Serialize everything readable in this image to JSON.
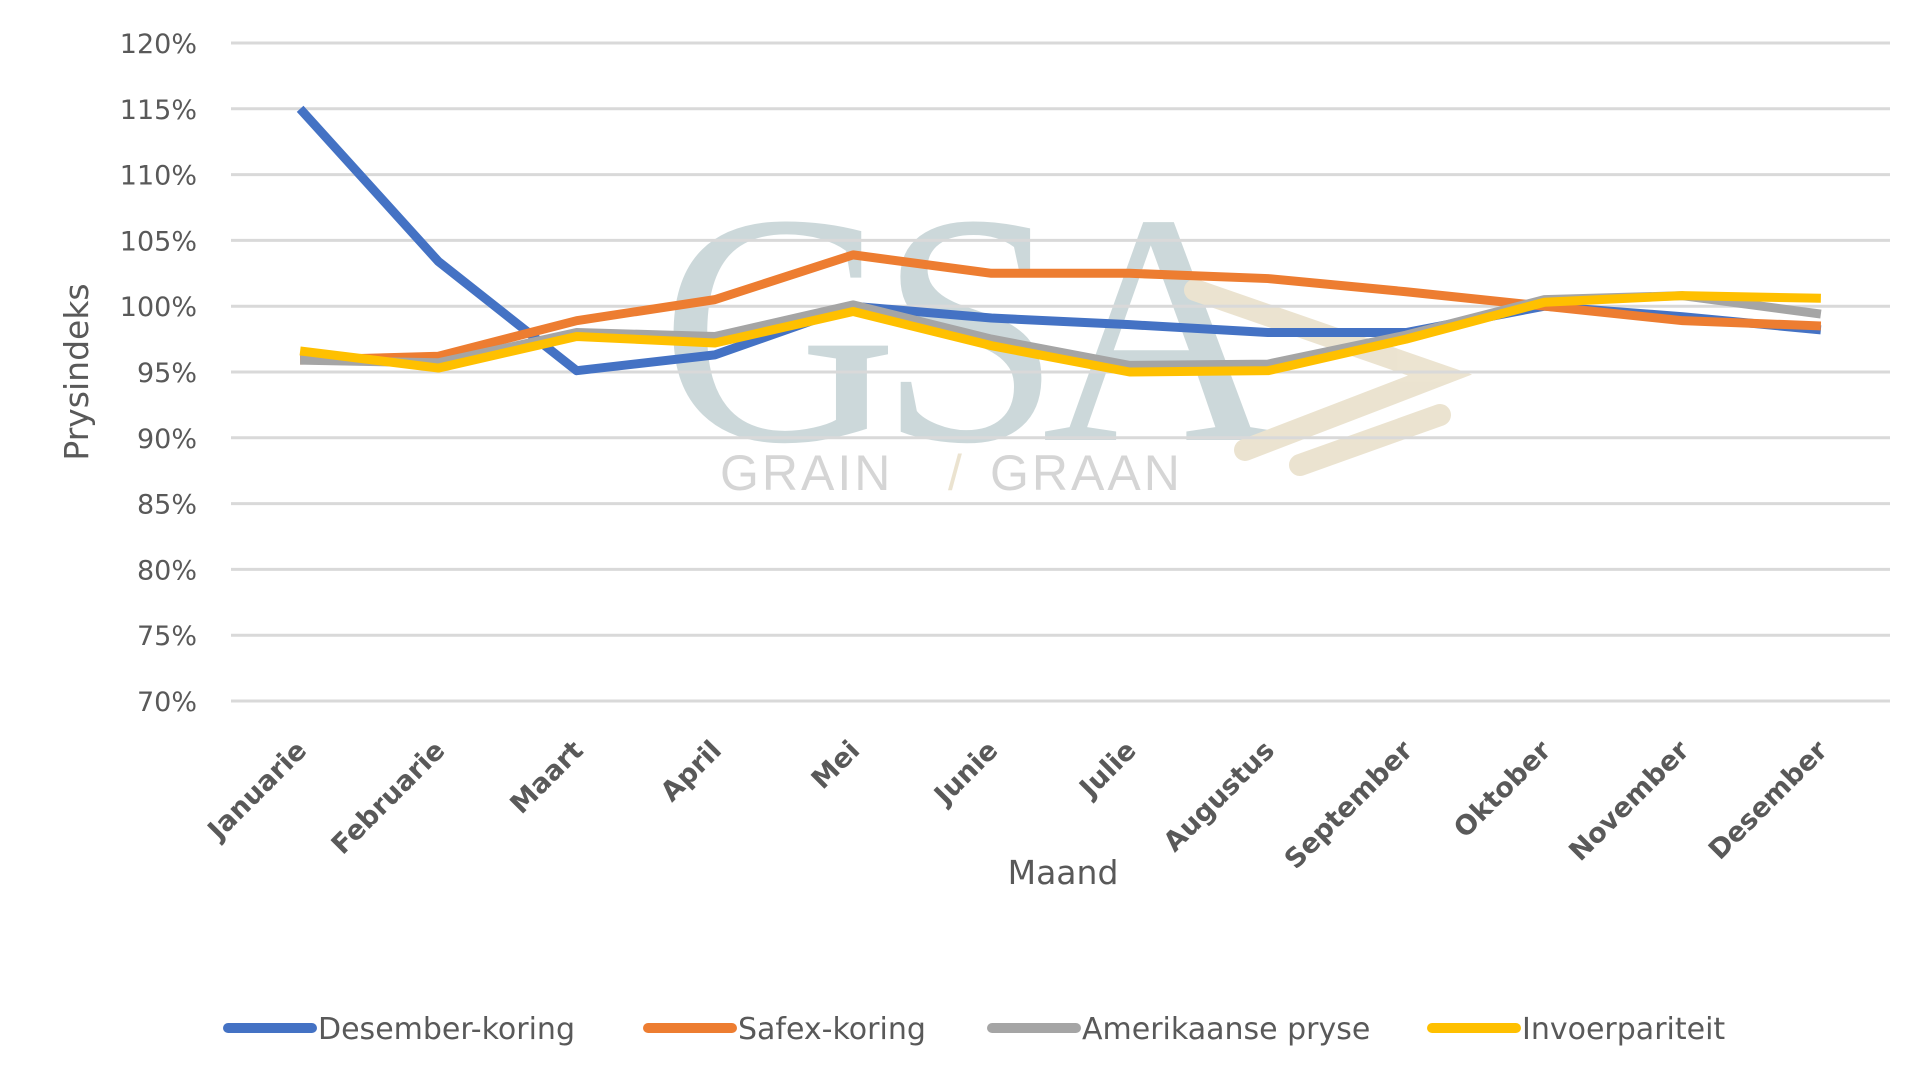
{
  "chart_data": {
    "type": "line",
    "title": "",
    "xlabel": "Maand",
    "ylabel": "Prysindeks",
    "ylim": [
      70,
      120
    ],
    "yticks": [
      "70%",
      "75%",
      "80%",
      "85%",
      "90%",
      "95%",
      "100%",
      "105%",
      "110%",
      "115%",
      "120%"
    ],
    "grid": true,
    "legend_position": "bottom",
    "categories": [
      "Januarie",
      "Februarie",
      "Maart",
      "April",
      "Mei",
      "Junie",
      "Julie",
      "Augustus",
      "September",
      "Oktober",
      "November",
      "Desember"
    ],
    "series": [
      {
        "name": "Desember-koring",
        "color": "#4472C4",
        "values": [
          115.0,
          103.4,
          95.1,
          96.3,
          100.0,
          99.1,
          98.6,
          98.0,
          98.0,
          100.0,
          99.2,
          98.2
        ]
      },
      {
        "name": "Safex-koring",
        "color": "#ED7D31",
        "values": [
          95.9,
          96.2,
          98.9,
          100.5,
          103.9,
          102.5,
          102.5,
          102.1,
          101.1,
          100.0,
          98.9,
          98.5
        ]
      },
      {
        "name": "Amerikaanse pryse",
        "color": "#A5A5A5",
        "values": [
          95.9,
          95.7,
          98.0,
          97.7,
          100.1,
          97.5,
          95.5,
          95.6,
          97.8,
          100.5,
          100.8,
          99.4
        ]
      },
      {
        "name": "Invoerpariteit",
        "color": "#FFC000",
        "values": [
          96.6,
          95.3,
          97.7,
          97.2,
          99.6,
          97.0,
          95.0,
          95.1,
          97.5,
          100.3,
          100.8,
          100.6
        ]
      }
    ]
  },
  "watermark": {
    "logo": "GSA",
    "text": "GRAIN | GRAAN"
  }
}
